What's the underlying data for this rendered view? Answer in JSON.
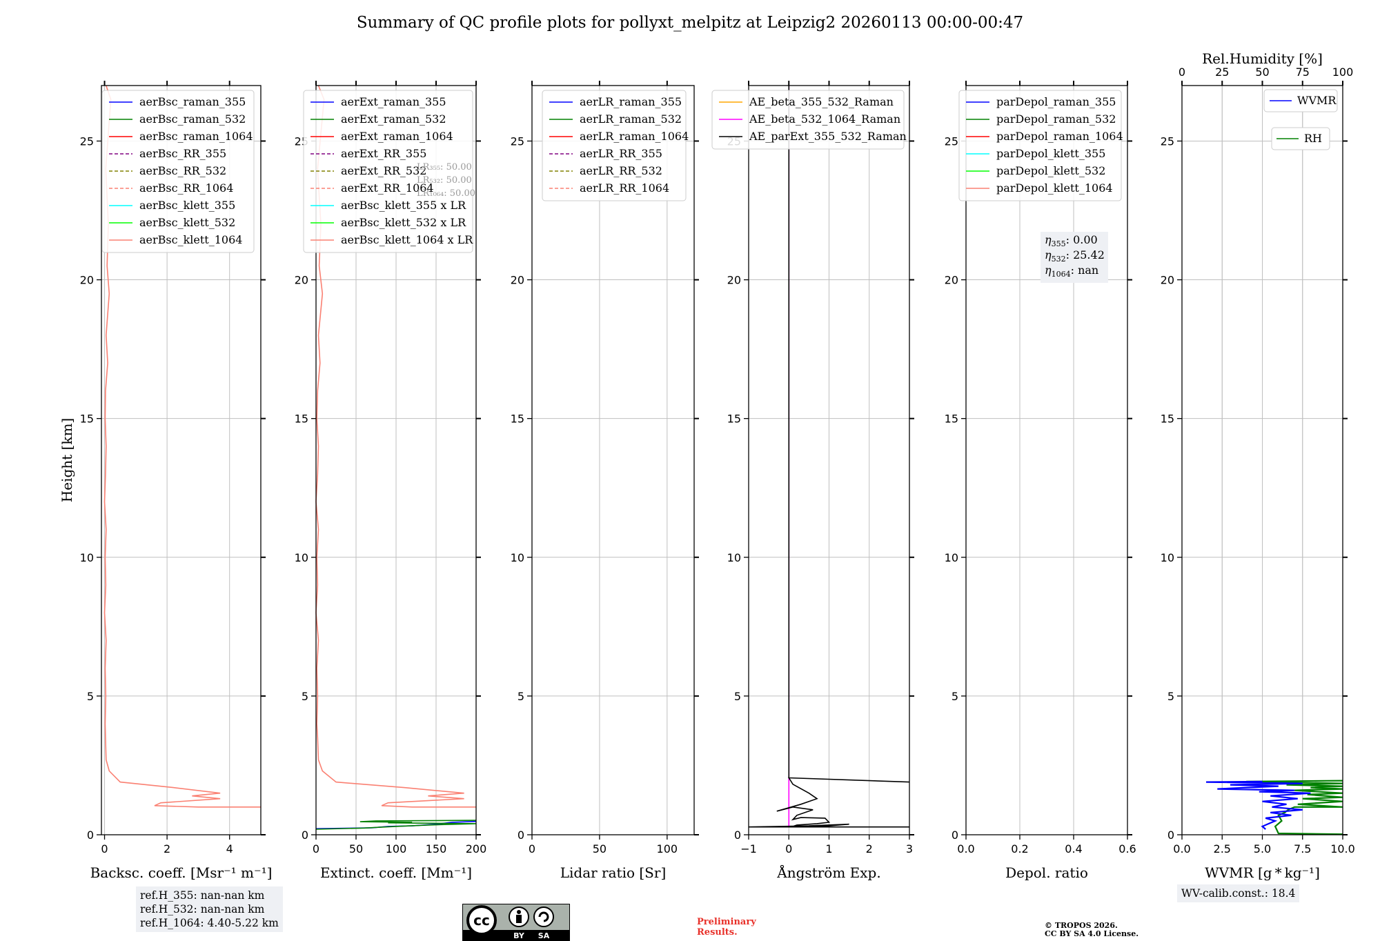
{
  "title": "Summary of QC profile plots for pollyxt_melpitz at Leipzig2 20260113 00:00-00:47",
  "colors": {
    "raman_355": "#0000ff",
    "raman_532": "#008000",
    "raman_1064": "#ff0000",
    "rr_355": "#800080",
    "rr_532": "#808000",
    "rr_1064": "#fa8072",
    "klett_355": "#00ffff",
    "klett_532": "#00ff00",
    "klett_1064": "#fa8072",
    "ae_355_532": "#ffa500",
    "ae_532_1064": "#ff00ff",
    "ae_ext": "#000000",
    "wvmr": "#0000ff",
    "rh": "#008000",
    "grid": "#bfbfbf"
  },
  "chart_data": [
    {
      "type": "line",
      "id": "backscatter",
      "xlabel": "Backsc. coeff. [Msr⁻¹ m⁻¹]",
      "ylabel": "Height [km]",
      "xlim": [
        -0.1,
        5.0
      ],
      "ylim": [
        0,
        27
      ],
      "xticks": [
        0,
        2,
        4
      ],
      "yticks": [
        0,
        5,
        10,
        15,
        20,
        25
      ],
      "legend": [
        {
          "label": "aerBsc_raman_355",
          "color": "#0000ff",
          "dash": false
        },
        {
          "label": "aerBsc_raman_532",
          "color": "#008000",
          "dash": false
        },
        {
          "label": "aerBsc_raman_1064",
          "color": "#ff0000",
          "dash": false
        },
        {
          "label": "aerBsc_RR_355",
          "color": "#800080",
          "dash": true
        },
        {
          "label": "aerBsc_RR_532",
          "color": "#808000",
          "dash": true
        },
        {
          "label": "aerBsc_RR_1064",
          "color": "#fa8072",
          "dash": true
        },
        {
          "label": "aerBsc_klett_355",
          "color": "#00ffff",
          "dash": false
        },
        {
          "label": "aerBsc_klett_532",
          "color": "#00ff00",
          "dash": false
        },
        {
          "label": "aerBsc_klett_1064",
          "color": "#fa8072",
          "dash": false
        }
      ],
      "series": [
        {
          "name": "aerBsc_klett_1064",
          "color": "#fa8072",
          "x": [
            5.0,
            3.0,
            1.6,
            1.8,
            3.7,
            2.8,
            3.7,
            2.2,
            0.5,
            0.15,
            0.05,
            0.03,
            0.02,
            0.04,
            0.02,
            0.05,
            0.0,
            0.04,
            0.02,
            0.05,
            0.0,
            0.03,
            0.05,
            0.02,
            0.03,
            0.1,
            0.05,
            0.15,
            0.08,
            0.12,
            0.04,
            0.2,
            0.05
          ],
          "y": [
            1.0,
            1.0,
            1.05,
            1.15,
            1.3,
            1.4,
            1.5,
            1.7,
            1.9,
            2.3,
            2.7,
            3.5,
            4.0,
            5.0,
            6.0,
            7.0,
            8.0,
            9.0,
            10.0,
            11.0,
            12.0,
            13.0,
            14.0,
            15.0,
            16.0,
            17.0,
            18.0,
            19.5,
            20.5,
            22.0,
            24.0,
            26.5,
            27.0
          ]
        }
      ],
      "info": [
        "ref.H_355: nan-nan km",
        "ref.H_532: nan-nan km",
        "ref.H_1064: 4.40-5.22 km"
      ]
    },
    {
      "type": "line",
      "id": "extinction",
      "xlabel": "Extinct. coeff. [Mm⁻¹]",
      "xlim": [
        0,
        200
      ],
      "ylim": [
        0,
        27
      ],
      "xticks": [
        0,
        50,
        100,
        150,
        200
      ],
      "yticks": [
        0,
        5,
        10,
        15,
        20,
        25
      ],
      "legend": [
        {
          "label": "aerExt_raman_355",
          "color": "#0000ff",
          "dash": false
        },
        {
          "label": "aerExt_raman_532",
          "color": "#008000",
          "dash": false
        },
        {
          "label": "aerExt_raman_1064",
          "color": "#ff0000",
          "dash": false
        },
        {
          "label": "aerExt_RR_355",
          "color": "#800080",
          "dash": true
        },
        {
          "label": "aerExt_RR_532",
          "color": "#808000",
          "dash": true
        },
        {
          "label": "aerExt_RR_1064",
          "color": "#fa8072",
          "dash": true
        },
        {
          "label": "aerBsc_klett_355 x LR",
          "color": "#00ffff",
          "dash": false
        },
        {
          "label": "aerBsc_klett_532 x LR",
          "color": "#00ff00",
          "dash": false
        },
        {
          "label": "aerBsc_klett_1064 x LR",
          "color": "#fa8072",
          "dash": false
        }
      ],
      "series": [
        {
          "name": "aerBsc_klett_1064 x LR",
          "color": "#fa8072",
          "x": [
            200,
            120,
            82,
            90,
            185,
            140,
            185,
            110,
            25,
            8,
            3,
            2,
            1,
            2,
            1,
            3,
            0,
            2,
            1,
            3,
            0,
            2,
            3,
            1,
            2,
            5,
            3,
            8,
            4,
            6,
            2,
            10,
            3
          ],
          "y": [
            1.0,
            1.0,
            1.05,
            1.15,
            1.3,
            1.4,
            1.5,
            1.7,
            1.9,
            2.3,
            2.7,
            3.5,
            4.0,
            5.0,
            6.0,
            7.0,
            8.0,
            9.0,
            10.0,
            11.0,
            12.0,
            13.0,
            14.0,
            15.0,
            16.0,
            17.0,
            18.0,
            19.5,
            20.5,
            22.0,
            24.0,
            26.5,
            27.0
          ]
        },
        {
          "name": "aerExt_raman_355",
          "color": "#0000ff",
          "x": [
            0,
            70,
            90,
            120,
            150,
            170,
            200
          ],
          "y": [
            0.22,
            0.25,
            0.3,
            0.32,
            0.38,
            0.45,
            0.48
          ]
        },
        {
          "name": "aerExt_raman_532",
          "color": "#008000",
          "x": [
            0,
            60,
            80,
            100,
            140,
            200,
            90,
            120,
            55,
            75,
            200
          ],
          "y": [
            0.2,
            0.24,
            0.27,
            0.3,
            0.35,
            0.4,
            0.43,
            0.45,
            0.47,
            0.5,
            0.52
          ]
        }
      ],
      "lr_labels": [
        "LR₃₅₅: 50.00",
        "LR₅₃₂: 50.00",
        "LR₁₀₆₄: 50.00"
      ]
    },
    {
      "type": "line",
      "id": "lidar_ratio",
      "xlabel": "Lidar ratio [Sr]",
      "xlim": [
        0,
        120
      ],
      "ylim": [
        0,
        27
      ],
      "xticks": [
        0,
        50,
        100
      ],
      "yticks": [
        0,
        5,
        10,
        15,
        20,
        25
      ],
      "legend": [
        {
          "label": "aerLR_raman_355",
          "color": "#0000ff",
          "dash": false
        },
        {
          "label": "aerLR_raman_532",
          "color": "#008000",
          "dash": false
        },
        {
          "label": "aerLR_raman_1064",
          "color": "#ff0000",
          "dash": false
        },
        {
          "label": "aerLR_RR_355",
          "color": "#800080",
          "dash": true
        },
        {
          "label": "aerLR_RR_532",
          "color": "#808000",
          "dash": true
        },
        {
          "label": "aerLR_RR_1064",
          "color": "#fa8072",
          "dash": true
        }
      ],
      "series": []
    },
    {
      "type": "line",
      "id": "angstrom",
      "xlabel": "Ångström Exp.",
      "xlim": [
        -1,
        3
      ],
      "ylim": [
        0,
        27
      ],
      "xticks": [
        -1,
        0,
        1,
        2,
        3
      ],
      "xticklabels": [
        "−1",
        "0",
        "1",
        "2",
        "3"
      ],
      "yticks": [
        0,
        5,
        10,
        15,
        20,
        25
      ],
      "legend": [
        {
          "label": "AE_beta_355_532_Raman",
          "color": "#ffa500",
          "dash": false
        },
        {
          "label": "AE_beta_532_1064_Raman",
          "color": "#ff00ff",
          "dash": false
        },
        {
          "label": "AE_parExt_355_532_Raman",
          "color": "#000000",
          "dash": false
        }
      ],
      "series": [
        {
          "name": "AE_beta_532_1064_Raman",
          "color": "#ff00ff",
          "x": [
            0,
            0,
            0
          ],
          "y": [
            0.3,
            2.05,
            27
          ]
        },
        {
          "name": "AE_parExt_355_532_Raman",
          "color": "#000000",
          "x": [
            0,
            0,
            3.0,
            3.0,
            0,
            0.1,
            0.5,
            0.7,
            0.3,
            -0.3,
            0.1,
            0.6,
            0.2,
            0.1,
            0.3,
            0.9,
            1.0,
            0.7,
            0.2,
            0.1,
            0.8,
            1.5,
            0.5,
            -1.0,
            3.0
          ],
          "y": [
            27,
            2.05,
            1.9,
            1.9,
            2.05,
            1.82,
            1.5,
            1.3,
            1.1,
            0.85,
            1.0,
            0.9,
            0.7,
            0.55,
            0.62,
            0.6,
            0.45,
            0.4,
            0.35,
            0.3,
            0.3,
            0.38,
            0.32,
            0.28,
            0.28
          ]
        }
      ]
    },
    {
      "type": "line",
      "id": "depol",
      "xlabel": "Depol. ratio",
      "xlim": [
        0,
        0.6
      ],
      "ylim": [
        0,
        27
      ],
      "xticks": [
        0,
        0.2,
        0.4,
        0.6
      ],
      "xticklabels": [
        "0.0",
        "0.2",
        "0.4",
        "0.6"
      ],
      "yticks": [
        0,
        5,
        10,
        15,
        20,
        25
      ],
      "legend": [
        {
          "label": "parDepol_raman_355",
          "color": "#0000ff",
          "dash": false
        },
        {
          "label": "parDepol_raman_532",
          "color": "#008000",
          "dash": false
        },
        {
          "label": "parDepol_raman_1064",
          "color": "#ff0000",
          "dash": false
        },
        {
          "label": "parDepol_klett_355",
          "color": "#00ffff",
          "dash": false
        },
        {
          "label": "parDepol_klett_532",
          "color": "#00ff00",
          "dash": false
        },
        {
          "label": "parDepol_klett_1064",
          "color": "#fa8072",
          "dash": false
        }
      ],
      "series": [],
      "eta": [
        {
          "sym": "η",
          "sub": "355",
          "value": ": 0.00"
        },
        {
          "sym": "η",
          "sub": "532",
          "value": ": 25.42"
        },
        {
          "sym": "η",
          "sub": "1064",
          "value": ": nan"
        }
      ]
    },
    {
      "type": "line",
      "id": "wvmr",
      "xlabel": "WVMR [g * kg⁻¹]",
      "x2label": "Rel.Humidity [%]",
      "xlim": [
        0,
        10
      ],
      "x2lim": [
        0,
        100
      ],
      "ylim": [
        0,
        27
      ],
      "xticks": [
        0,
        2.5,
        5,
        7.5,
        10
      ],
      "xticklabels": [
        "0.0",
        "2.5",
        "5.0",
        "7.5",
        "10.0"
      ],
      "x2ticks": [
        0,
        25,
        50,
        75,
        100
      ],
      "x2ticklabels": [
        "0",
        "25",
        "50",
        "75",
        "100"
      ],
      "yticks": [
        0,
        5,
        10,
        15,
        20,
        25
      ],
      "legend_wvmr": {
        "label": "WVMR",
        "color": "#0000ff"
      },
      "legend_rh": {
        "label": "RH",
        "color": "#008000"
      },
      "series": [
        {
          "name": "RH",
          "color": "#008000",
          "axis": "x2",
          "x": [
            100,
            60,
            58,
            62,
            60,
            64,
            66,
            70,
            100,
            72,
            100,
            75,
            100,
            78,
            100,
            70,
            100,
            80,
            100,
            65,
            100,
            40,
            100
          ],
          "y": [
            0.02,
            0.05,
            0.3,
            0.5,
            0.7,
            0.8,
            0.9,
            1.0,
            1.0,
            1.1,
            1.2,
            1.3,
            1.35,
            1.45,
            1.5,
            1.6,
            1.65,
            1.7,
            1.75,
            1.8,
            1.85,
            1.92,
            1.95
          ]
        },
        {
          "name": "WVMR",
          "color": "#0000ff",
          "axis": "x",
          "x": [
            5.2,
            5.0,
            5.4,
            5.8,
            5.2,
            6.8,
            5.5,
            7.5,
            5.6,
            6.5,
            5.0,
            7.2,
            5.5,
            8.0,
            4.8,
            7.0,
            2.2,
            6.0,
            3.0,
            7.5,
            1.5,
            5.0
          ],
          "y": [
            0.2,
            0.3,
            0.4,
            0.5,
            0.6,
            0.7,
            0.8,
            0.9,
            1.0,
            1.1,
            1.2,
            1.3,
            1.4,
            1.5,
            1.55,
            1.6,
            1.65,
            1.75,
            1.8,
            1.85,
            1.9,
            1.92
          ]
        }
      ],
      "info": [
        "WV-calib.const.: 18.4"
      ]
    }
  ],
  "footer": {
    "cc_text": "cc",
    "by_text": "BY",
    "sa_text": "SA",
    "preliminary": [
      "Preliminary",
      "Results."
    ],
    "copyright": [
      "© TROPOS 2026.",
      "CC BY SA 4.0 License."
    ]
  }
}
